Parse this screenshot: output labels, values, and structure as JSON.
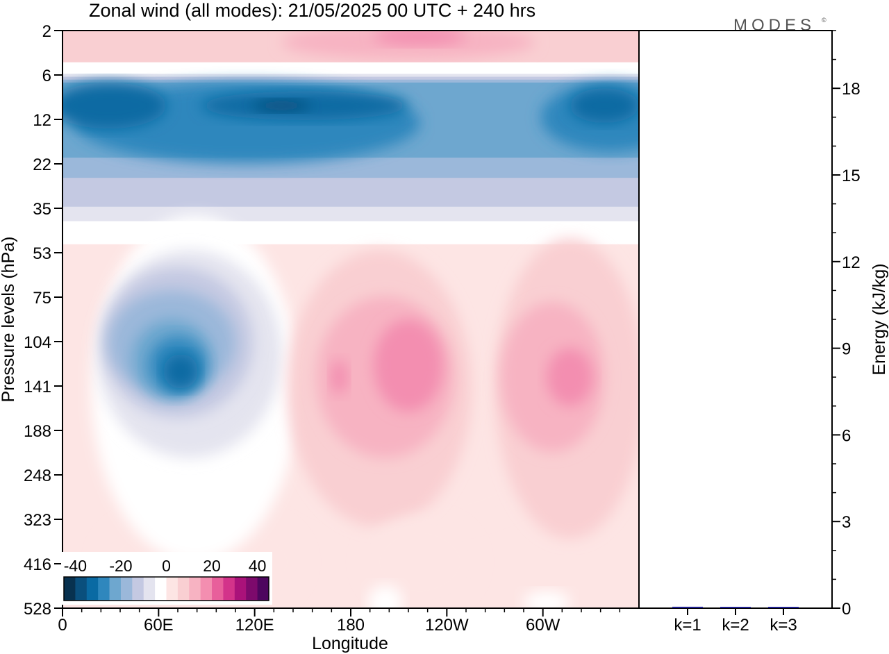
{
  "title": "Zonal wind (all modes):  21/05/2025  00 UTC  + 240 hrs",
  "logo": "MODES",
  "logo_mark": "©",
  "chart_data": [
    {
      "type": "heatmap",
      "xlabel": "Longitude",
      "ylabel": "Pressure levels (hPa)",
      "x_ticks": [
        "0",
        "60E",
        "120E",
        "180",
        "120W",
        "60W"
      ],
      "y_ticks": [
        "2",
        "6",
        "12",
        "22",
        "35",
        "53",
        "75",
        "104",
        "141",
        "188",
        "248",
        "323",
        "416",
        "528"
      ],
      "colorbar": {
        "labels": [
          "-40",
          "-20",
          "0",
          "20",
          "40"
        ],
        "min": -45,
        "max": 45,
        "step": 5,
        "colors": [
          "#08314f",
          "#0a4f7d",
          "#0a6aa3",
          "#2f87bd",
          "#6ea7cf",
          "#9bb8da",
          "#c4c9e2",
          "#e4e4ef",
          "#ffffff",
          "#fde5e4",
          "#f9cfd2",
          "#f7b3c2",
          "#f38eb0",
          "#e85f9b",
          "#d3338a",
          "#aa127a",
          "#7d0a6c",
          "#4d065e"
        ]
      },
      "regions": [
        {
          "name": "stratosphere top",
          "level": "2-5 hPa",
          "lon": "0-360",
          "value": 10
        },
        {
          "name": "easterly jet",
          "level": "6-30 hPa",
          "lon": "0-360",
          "value": -30
        },
        {
          "name": "easterly core",
          "level": "7-12 hPa",
          "lon": "60E-180",
          "value": -40
        },
        {
          "name": "lower easterlies",
          "level": "100-250 hPa",
          "lon": "20E-110E",
          "value": -35
        },
        {
          "name": "westerly core A",
          "level": "90-190 hPa",
          "lon": "170W-120W",
          "value": 20
        },
        {
          "name": "westerly core B",
          "level": "90-190 hPa",
          "lon": "90W-50W",
          "value": 20
        }
      ]
    },
    {
      "type": "bar",
      "ylabel": "Energy (kJ/kg)",
      "categories": [
        "k=1",
        "k=2",
        "k=3"
      ],
      "values": [
        0.05,
        0.02,
        0.03
      ],
      "ylim": [
        0,
        20
      ],
      "y_ticks": [
        "0",
        "3",
        "6",
        "9",
        "12",
        "15",
        "18"
      ],
      "bar_color": "#1f1f8f"
    }
  ]
}
